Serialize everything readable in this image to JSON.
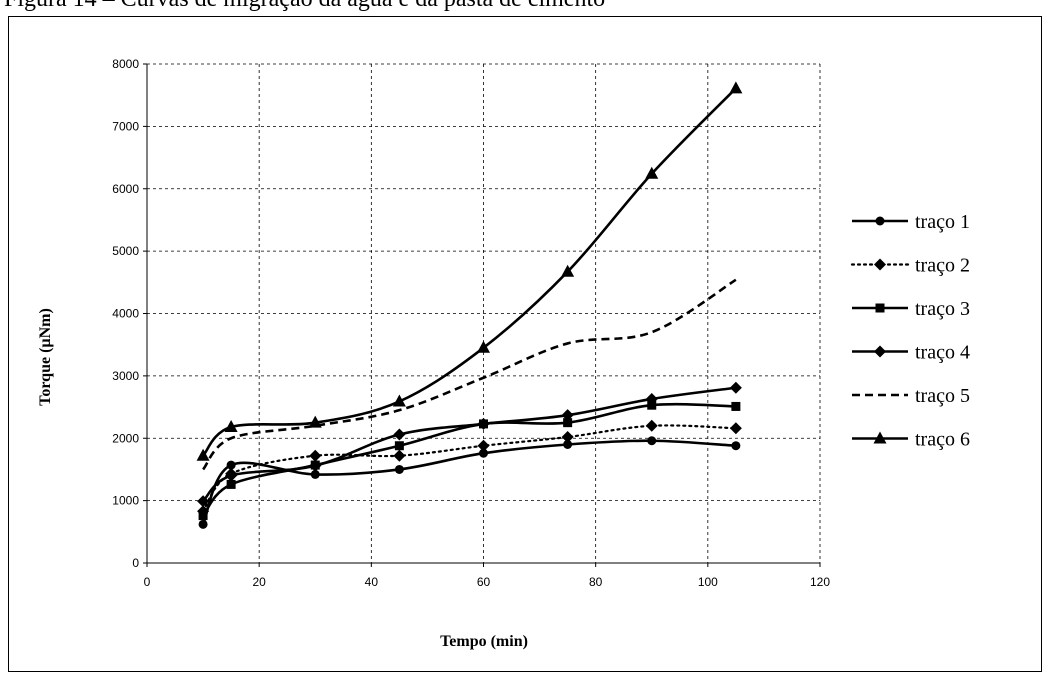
{
  "caption": "Figura 14 – Curvas de migração da água e da pasta de cimento",
  "chart_data": {
    "type": "line",
    "title": "",
    "xlabel": "Tempo (min)",
    "ylabel": "Torque (µNm)",
    "xlim": [
      0,
      120
    ],
    "ylim": [
      0,
      8000
    ],
    "xticks": [
      0,
      20,
      40,
      60,
      80,
      100,
      120
    ],
    "yticks": [
      0,
      1000,
      2000,
      3000,
      4000,
      5000,
      6000,
      7000,
      8000
    ],
    "grid": true,
    "grid_style": "dashed",
    "legend_position": "right",
    "x": [
      10,
      15,
      30,
      45,
      60,
      75,
      90,
      105
    ],
    "series": [
      {
        "name": "traço 1",
        "marker": "circle",
        "line": "solid",
        "values": [
          620,
          1570,
          1420,
          1500,
          1760,
          1900,
          1960,
          1880
        ]
      },
      {
        "name": "traço 2",
        "marker": "diamond",
        "line": "dotted",
        "values": [
          830,
          1430,
          1720,
          1720,
          1880,
          2020,
          2200,
          2160
        ]
      },
      {
        "name": "traço 3",
        "marker": "square",
        "line": "solid",
        "values": [
          760,
          1260,
          1570,
          1880,
          2230,
          2250,
          2530,
          2510
        ]
      },
      {
        "name": "traço 4",
        "marker": "diamond",
        "line": "solid",
        "values": [
          990,
          1400,
          1560,
          2060,
          2230,
          2370,
          2630,
          2810
        ]
      },
      {
        "name": "traço 5",
        "marker": "none",
        "line": "dashed",
        "values": [
          1500,
          2000,
          2200,
          2450,
          2970,
          3520,
          3700,
          4540
        ]
      },
      {
        "name": "traço 6",
        "marker": "triangle",
        "line": "solid",
        "values": [
          1720,
          2180,
          2250,
          2590,
          3450,
          4670,
          6240,
          7610
        ]
      }
    ]
  }
}
